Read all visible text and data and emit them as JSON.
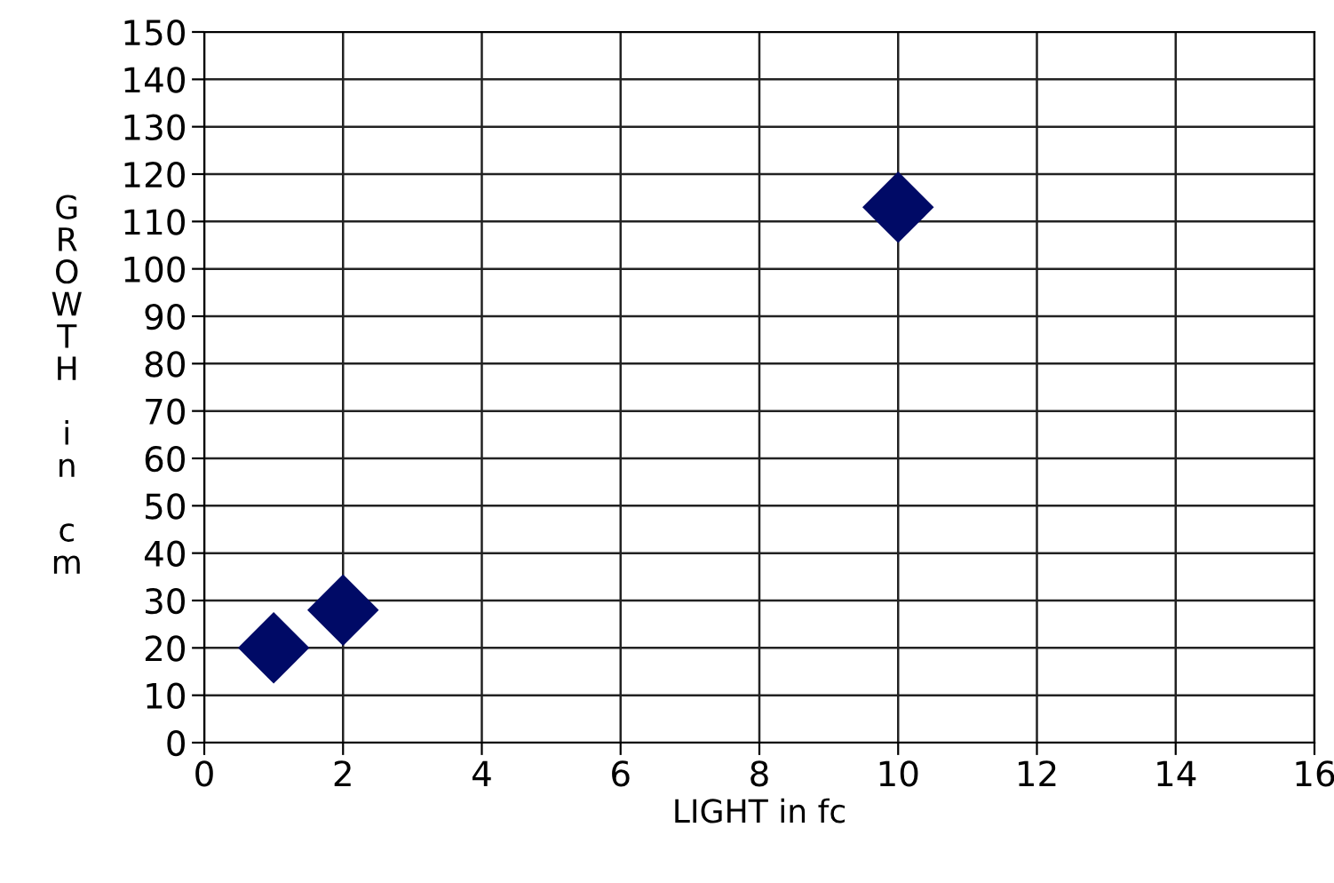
{
  "chart_data": {
    "type": "scatter",
    "xlabel": "LIGHT in fc",
    "ylabel": "GROWTH in cm",
    "x": [
      1,
      2,
      10
    ],
    "values": [
      20,
      28,
      113
    ],
    "color": "#000a66",
    "marker": "diamond",
    "xlim": [
      0,
      16
    ],
    "xticks": [
      0,
      2,
      4,
      6,
      8,
      10,
      12,
      14,
      16
    ],
    "ylim": [
      0,
      150
    ],
    "yticks": [
      0,
      10,
      20,
      30,
      40,
      50,
      60,
      70,
      80,
      90,
      100,
      110,
      120,
      130,
      140,
      150
    ],
    "grid": true
  }
}
